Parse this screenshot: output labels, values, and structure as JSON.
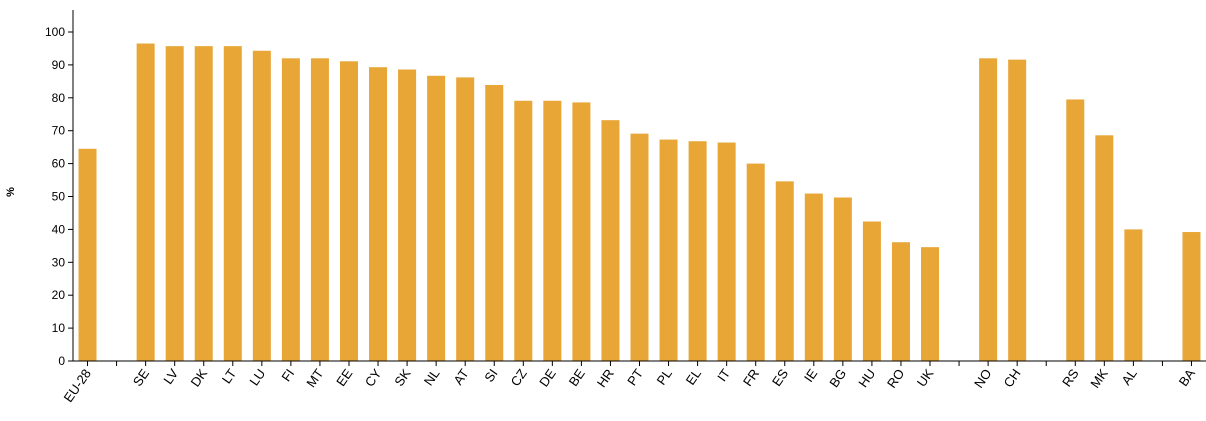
{
  "chart_data": {
    "type": "bar",
    "title": "",
    "xlabel": "",
    "ylabel": "%",
    "ylim": [
      0,
      100
    ],
    "yticks": [
      0,
      10,
      20,
      30,
      40,
      50,
      60,
      70,
      80,
      90,
      100
    ],
    "bar_color": "#e8a637",
    "grid": false,
    "categories": [
      "EU-28",
      "",
      "SE",
      "LV",
      "DK",
      "LT",
      "LU",
      "FI",
      "MT",
      "EE",
      "CY",
      "SK",
      "NL",
      "AT",
      "SI",
      "CZ",
      "DE",
      "BE",
      "HR",
      "PT",
      "PL",
      "EL",
      "IT",
      "FR",
      "ES",
      "IE",
      "BG",
      "HU",
      "RO",
      "UK",
      "",
      "NO",
      "CH",
      "",
      "RS",
      "MK",
      "AL",
      "",
      "BA"
    ],
    "values": [
      64.5,
      null,
      96.5,
      95.7,
      95.7,
      95.7,
      94.3,
      92.0,
      92.0,
      91.1,
      89.3,
      88.6,
      86.7,
      86.2,
      83.9,
      79.1,
      79.1,
      78.6,
      73.2,
      69.1,
      67.3,
      66.8,
      66.4,
      60.0,
      54.6,
      50.9,
      49.7,
      42.4,
      36.1,
      34.6,
      null,
      92.0,
      91.6,
      null,
      79.5,
      68.6,
      40.0,
      null,
      39.2
    ]
  }
}
